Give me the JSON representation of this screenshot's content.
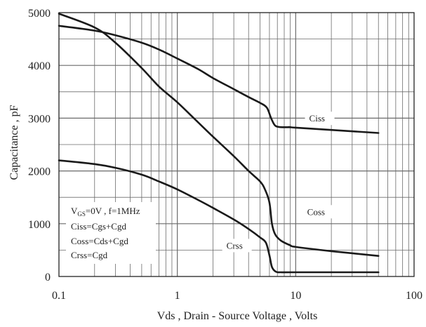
{
  "chart_data": {
    "type": "line",
    "title": "",
    "xlabel": "Vds , Drain - Source Voltage , Volts",
    "ylabel": "Capacitance , pF",
    "xscale": "log",
    "xlim": [
      0.1,
      100
    ],
    "ylim": [
      0,
      5000
    ],
    "xticks": [
      "0.1",
      "1",
      "10",
      "100"
    ],
    "yticks": [
      "0",
      "1000",
      "2000",
      "3000",
      "4000",
      "5000"
    ],
    "grid": true,
    "series": [
      {
        "name": "Ciss",
        "x": [
          0.1,
          0.2,
          0.3,
          0.5,
          0.7,
          1,
          1.5,
          2,
          3,
          4,
          5,
          5.7,
          6.2,
          6.7,
          7.5,
          9,
          10,
          50
        ],
        "y": [
          4750,
          4660,
          4570,
          4430,
          4300,
          4130,
          3930,
          3760,
          3550,
          3400,
          3290,
          3200,
          3000,
          2860,
          2830,
          2830,
          2820,
          2720
        ]
      },
      {
        "name": "Coss",
        "x": [
          0.1,
          0.2,
          0.3,
          0.5,
          0.7,
          1,
          1.5,
          2,
          3,
          4,
          5,
          5.5,
          6,
          6.3,
          6.7,
          7.5,
          9,
          10,
          20,
          50
        ],
        "y": [
          4980,
          4720,
          4430,
          3950,
          3600,
          3300,
          2920,
          2650,
          2280,
          2000,
          1800,
          1650,
          1400,
          1000,
          800,
          680,
          590,
          560,
          480,
          390
        ]
      },
      {
        "name": "Crss",
        "x": [
          0.1,
          0.2,
          0.3,
          0.5,
          0.7,
          1,
          1.5,
          2,
          3,
          4,
          5,
          5.6,
          6,
          6.3,
          6.8,
          7.5,
          10,
          50
        ],
        "y": [
          2200,
          2130,
          2060,
          1930,
          1800,
          1650,
          1450,
          1300,
          1080,
          900,
          740,
          640,
          400,
          180,
          90,
          80,
          80,
          80
        ]
      }
    ],
    "curve_labels": [
      {
        "text": "Ciss",
        "x": 13,
        "y": 2950
      },
      {
        "text": "Coss",
        "x": 12.5,
        "y": 1180
      },
      {
        "text": "Crss",
        "x": 2.6,
        "y": 540
      }
    ],
    "annotation_box": {
      "lines": [
        "V_GS=0V , f=1MHz",
        "Ciss=Cgs+Cgd",
        "Coss=Cds+Cgd",
        "Crss=Cgd"
      ],
      "vgs_prefix": "V",
      "vgs_sub": "GS",
      "vgs_rest": "=0V , f=1MHz"
    },
    "colors": {
      "curves": "#1a1a1a",
      "grid": "#6a6a6a",
      "frame": "#222222"
    }
  }
}
